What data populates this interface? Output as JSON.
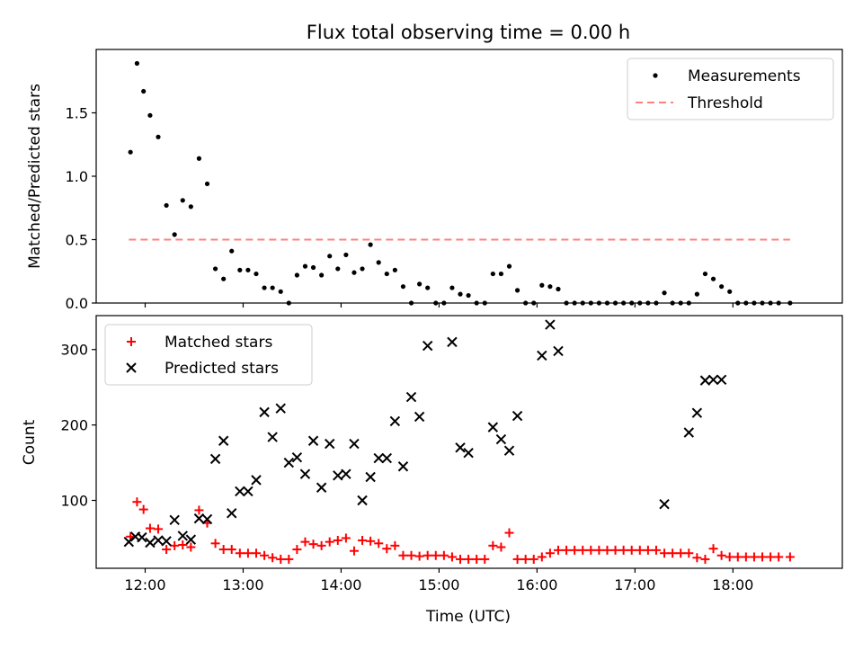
{
  "title": "Flux total observing time = 0.00 h",
  "chart_data": [
    {
      "type": "scatter",
      "ylabel": "Matched/Predicted stars",
      "xlabel": "",
      "xlim": [
        "11:30",
        "19:07"
      ],
      "ylim": [
        0,
        2.0
      ],
      "y_ticks": [
        0.0,
        0.5,
        1.0,
        1.5
      ],
      "y_tick_labels": [
        "0.0",
        "0.5",
        "1.0",
        "1.5"
      ],
      "x_ticks": [
        "12:00",
        "13:00",
        "14:00",
        "15:00",
        "16:00",
        "17:00",
        "18:00"
      ],
      "grid": false,
      "legend_position": "top-right",
      "threshold": {
        "name": "Threshold",
        "value": 0.5,
        "x": [
          "11:50",
          "18:35"
        ],
        "color": "#ff8080"
      },
      "series": [
        {
          "name": "Measurements",
          "color": "#000000",
          "marker": "dot",
          "x": [
            "11:51",
            "11:55",
            "11:59",
            "12:03",
            "12:08",
            "12:13",
            "12:18",
            "12:23",
            "12:28",
            "12:33",
            "12:38",
            "12:43",
            "12:48",
            "12:53",
            "12:58",
            "13:03",
            "13:08",
            "13:13",
            "13:18",
            "13:23",
            "13:28",
            "13:33",
            "13:38",
            "13:43",
            "13:48",
            "13:53",
            "13:58",
            "14:03",
            "14:08",
            "14:13",
            "14:18",
            "14:23",
            "14:28",
            "14:33",
            "14:38",
            "14:43",
            "14:48",
            "14:53",
            "14:58",
            "15:03",
            "15:08",
            "15:13",
            "15:18",
            "15:23",
            "15:28",
            "15:33",
            "15:38",
            "15:43",
            "15:48",
            "15:53",
            "15:58",
            "16:03",
            "16:08",
            "16:13",
            "16:18",
            "16:23",
            "16:28",
            "16:33",
            "16:38",
            "16:43",
            "16:48",
            "16:53",
            "16:58",
            "17:03",
            "17:08",
            "17:13",
            "17:18",
            "17:23",
            "17:28",
            "17:33",
            "17:38",
            "17:43",
            "17:48",
            "17:53",
            "17:58",
            "18:03",
            "18:08",
            "18:13",
            "18:18",
            "18:23",
            "18:28",
            "18:35"
          ],
          "y": [
            1.19,
            1.89,
            1.67,
            1.48,
            1.31,
            0.77,
            0.54,
            0.81,
            0.76,
            1.14,
            0.94,
            0.27,
            0.19,
            0.41,
            0.26,
            0.26,
            0.23,
            0.12,
            0.12,
            0.09,
            0.0,
            0.22,
            0.29,
            0.28,
            0.22,
            0.37,
            0.27,
            0.38,
            0.24,
            0.27,
            0.46,
            0.32,
            0.23,
            0.26,
            0.13,
            0.0,
            0.15,
            0.12,
            0.0,
            0.0,
            0.12,
            0.07,
            0.06,
            0.0,
            0.0,
            0.23,
            0.23,
            0.29,
            0.1,
            0.0,
            0.0,
            0.14,
            0.13,
            0.11,
            0.0,
            0.0,
            0.0,
            0.0,
            0.0,
            0.0,
            0.0,
            0.0,
            0.0,
            0.0,
            0.0,
            0.0,
            0.08,
            0.0,
            0.0,
            0.0,
            0.07,
            0.23,
            0.19,
            0.13,
            0.09,
            0.0,
            0.0,
            0.0,
            0.0,
            0.0,
            0.0,
            0.0
          ]
        }
      ]
    },
    {
      "type": "scatter",
      "ylabel": "Count",
      "xlabel": "Time (UTC)",
      "xlim": [
        "11:30",
        "19:07"
      ],
      "ylim": [
        10,
        345
      ],
      "y_ticks": [
        100,
        200,
        300
      ],
      "y_tick_labels": [
        "100",
        "200",
        "300"
      ],
      "x_ticks": [
        "12:00",
        "13:00",
        "14:00",
        "15:00",
        "16:00",
        "17:00",
        "18:00"
      ],
      "x_tick_labels": [
        "12:00",
        "13:00",
        "14:00",
        "15:00",
        "16:00",
        "17:00",
        "18:00"
      ],
      "grid": false,
      "legend_position": "top-left",
      "series": [
        {
          "name": "Matched stars",
          "color": "#ff0000",
          "marker": "plus",
          "x": [
            "11:51",
            "11:55",
            "11:59",
            "12:03",
            "12:08",
            "12:13",
            "12:18",
            "12:23",
            "12:28",
            "12:33",
            "12:38",
            "12:43",
            "12:48",
            "12:53",
            "12:58",
            "13:03",
            "13:08",
            "13:13",
            "13:18",
            "13:23",
            "13:28",
            "13:33",
            "13:38",
            "13:43",
            "13:48",
            "13:53",
            "13:58",
            "14:03",
            "14:08",
            "14:13",
            "14:18",
            "14:23",
            "14:28",
            "14:33",
            "14:38",
            "14:43",
            "14:48",
            "14:53",
            "14:58",
            "15:03",
            "15:08",
            "15:13",
            "15:18",
            "15:23",
            "15:28",
            "15:33",
            "15:38",
            "15:43",
            "15:48",
            "15:53",
            "15:58",
            "16:03",
            "16:08",
            "16:13",
            "16:18",
            "16:23",
            "16:28",
            "16:33",
            "16:38",
            "16:43",
            "16:48",
            "16:53",
            "16:58",
            "17:03",
            "17:08",
            "17:13",
            "17:18",
            "17:23",
            "17:28",
            "17:33",
            "17:38",
            "17:43",
            "17:48",
            "17:53",
            "17:58",
            "18:03",
            "18:08",
            "18:13",
            "18:18",
            "18:23",
            "18:28",
            "18:35"
          ],
          "y": [
            52,
            98,
            88,
            63,
            62,
            35,
            40,
            41,
            38,
            87,
            70,
            43,
            35,
            35,
            30,
            30,
            30,
            27,
            24,
            22,
            22,
            35,
            45,
            42,
            40,
            45,
            47,
            50,
            33,
            47,
            46,
            43,
            36,
            40,
            27,
            27,
            26,
            27,
            27,
            27,
            25,
            22,
            22,
            22,
            22,
            40,
            38,
            57,
            22,
            22,
            22,
            25,
            30,
            34,
            34,
            34,
            34,
            34,
            34,
            34,
            34,
            34,
            34,
            34,
            34,
            34,
            30,
            30,
            30,
            30,
            24,
            22,
            36,
            27,
            25,
            25,
            25,
            25,
            25,
            25,
            25,
            25
          ]
        },
        {
          "name": "Predicted stars",
          "color": "#000000",
          "marker": "x",
          "x": [
            "11:50",
            "11:54",
            "11:58",
            "12:03",
            "12:08",
            "12:13",
            "12:18",
            "12:23",
            "12:28",
            "12:33",
            "12:38",
            "12:43",
            "12:48",
            "12:53",
            "12:58",
            "13:03",
            "13:08",
            "13:13",
            "13:18",
            "13:23",
            "13:28",
            "13:33",
            "13:38",
            "13:43",
            "13:48",
            "13:53",
            "13:58",
            "14:03",
            "14:08",
            "14:13",
            "14:18",
            "14:23",
            "14:28",
            "14:33",
            "14:38",
            "14:43",
            "14:48",
            "14:53",
            "15:08",
            "15:13",
            "15:18",
            "15:33",
            "15:38",
            "15:43",
            "15:48",
            "16:03",
            "16:08",
            "16:13",
            "17:18",
            "17:33",
            "17:38",
            "17:43",
            "17:48",
            "17:53"
          ],
          "y": [
            45,
            52,
            51,
            44,
            47,
            46,
            74,
            53,
            48,
            76,
            75,
            155,
            179,
            83,
            112,
            112,
            127,
            217,
            184,
            222,
            150,
            157,
            135,
            179,
            117,
            175,
            133,
            135,
            175,
            100,
            131,
            156,
            156,
            205,
            145,
            237,
            211,
            305,
            310,
            170,
            163,
            197,
            181,
            166,
            212,
            292,
            333,
            298,
            95,
            190,
            216,
            259,
            260,
            260
          ]
        }
      ]
    }
  ]
}
